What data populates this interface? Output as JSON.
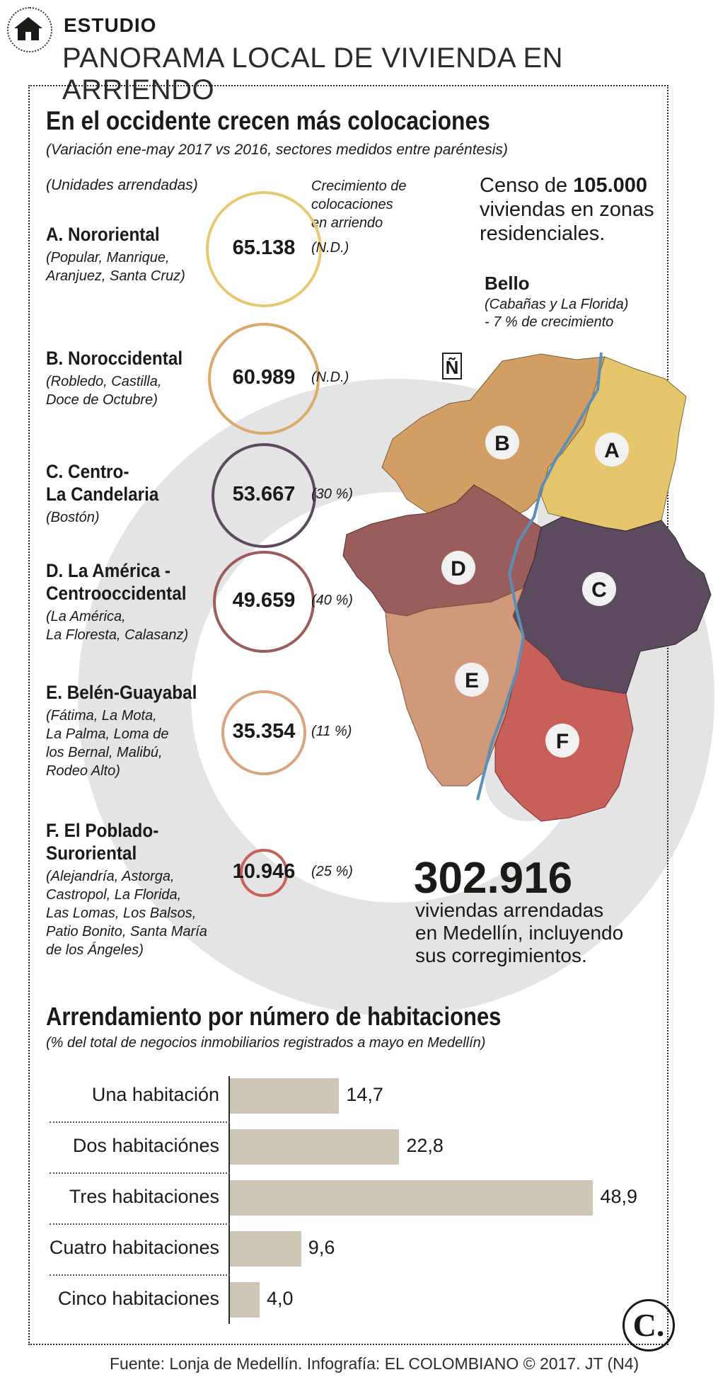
{
  "header": {
    "kicker": "ESTUDIO",
    "title": "PANORAMA LOCAL DE VIVIENDA EN ARRIENDO"
  },
  "section1": {
    "title": "En el occidente crecen más colocaciones",
    "subtitle": "(Variación ene-may 2017 vs 2016, sectores medidos entre paréntesis)",
    "units_label": "(Unidades arrendadas)",
    "growth_header": [
      "Crecimiento de",
      "colocaciones",
      "en arriendo"
    ],
    "census": {
      "prefix": "Censo de ",
      "number": "105.000",
      "rest": "viviendas en zonas residenciales."
    },
    "bello": {
      "name": "Bello",
      "lines": [
        "(Cabañas y La Florida)",
        "- 7 % de crecimiento"
      ]
    },
    "north_symbol": "Ñ",
    "total": {
      "number": "302.916",
      "lines": [
        "viviendas arrendadas",
        "en Medellín, incluyendo",
        "sus corregimientos."
      ]
    }
  },
  "sectors": [
    {
      "name_lines": [
        "A. Nororiental"
      ],
      "sub_lines": [
        "(Popular, Manrique,",
        "Aranjuez, Santa Cruz)"
      ],
      "value": "65.138",
      "units": 65138,
      "growth": "(N.D.)",
      "color": "#e8c870",
      "map_letter": "A"
    },
    {
      "name_lines": [
        "B. Noroccidental"
      ],
      "sub_lines": [
        "(Robledo, Castilla,",
        "Doce de Octubre)"
      ],
      "value": "60.989",
      "units": 60989,
      "growth": "(N.D.)",
      "color": "#dba96a",
      "map_letter": "B"
    },
    {
      "name_lines": [
        "C. Centro-",
        "La Candelaria"
      ],
      "sub_lines": [
        "(Bostón)"
      ],
      "value": "53.667",
      "units": 53667,
      "growth": "(30 %)",
      "color": "#5c4a5e",
      "map_letter": "C"
    },
    {
      "name_lines": [
        "D. La América -",
        "Centrooccidental"
      ],
      "sub_lines": [
        "(La América,",
        "La Floresta, Calasanz)"
      ],
      "value": "49.659",
      "units": 49659,
      "growth": "(40 %)",
      "color": "#9b5c5c",
      "map_letter": "D"
    },
    {
      "name_lines": [
        "E. Belén-Guayabal"
      ],
      "sub_lines": [
        "(Fátima, La Mota,",
        "La Palma, Loma de",
        "los Bernal, Malibú,",
        "Rodeo Alto)"
      ],
      "value": "35.354",
      "units": 35354,
      "growth": "(11 %)",
      "color": "#dba382",
      "map_letter": "E"
    },
    {
      "name_lines": [
        "F. El Poblado-",
        "Suroriental"
      ],
      "sub_lines": [
        "(Alejandría, Astorga,",
        "Castropol, La Florida,",
        "Las Lomas, Los Balsos,",
        "Patio Bonito, Santa María",
        "de los Ángeles)"
      ],
      "value": "10.946",
      "units": 10946,
      "growth": "(25 %)",
      "color": "#c8605a",
      "map_letter": "F"
    }
  ],
  "section2": {
    "title": "Arrendamiento por número de habitaciones",
    "subtitle": "(% del total de negocios inmobiliarios registrados a mayo en Medellín)"
  },
  "chart_data": {
    "type": "bar",
    "orientation": "horizontal",
    "categories": [
      "Una habitación",
      "Dos habitaciónes",
      "Tres habitaciones",
      "Cuatro habitaciones",
      "Cinco habitaciones"
    ],
    "values": [
      14.7,
      22.8,
      48.9,
      9.6,
      4.0
    ],
    "value_labels": [
      "14,7",
      "22,8",
      "48,9",
      "9,6",
      "4,0"
    ],
    "bar_color": "#cdc6b4",
    "xlim": [
      0,
      50
    ]
  },
  "footer": {
    "text": "Fuente: Lonja de Medellín. Infografía: EL COLOMBIANO © 2017. JT (N4)",
    "logo": "C."
  }
}
